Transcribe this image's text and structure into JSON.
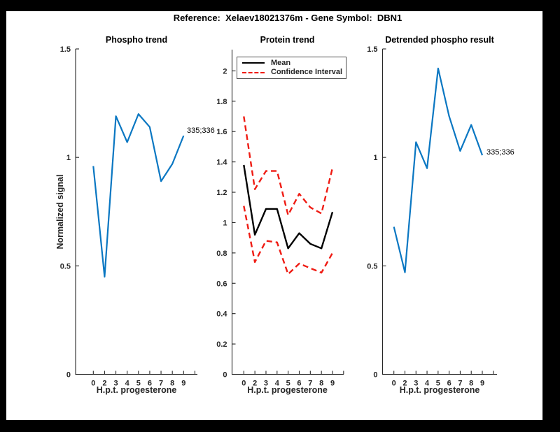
{
  "window": {
    "title": "Reference:  Xelaev18021376m - Gene Symbol:  DBN1"
  },
  "chart_data": [
    {
      "type": "line",
      "title": "Phospho trend",
      "xlabel": "H.p.t. progesterone",
      "ylabel": "Normalized signal",
      "x_tick_labels": [
        "0",
        "2",
        "3",
        "4",
        "5",
        "6",
        "7",
        "8",
        "9"
      ],
      "y_tick_labels": [
        "0",
        "0.5",
        "1",
        "1.5"
      ],
      "ylim": [
        0,
        1.5
      ],
      "grid": false,
      "endpoint_label": "335;336",
      "series": [
        {
          "name": "phospho-335-336",
          "color": "#0a77c2",
          "style": "solid",
          "values": [
            0.96,
            0.45,
            1.19,
            1.07,
            1.2,
            1.14,
            0.89,
            0.97,
            1.1
          ]
        }
      ]
    },
    {
      "type": "line",
      "title": "Protein trend",
      "xlabel": "H.p.t. progesterone",
      "ylabel": "",
      "x_tick_labels": [
        "0",
        "2",
        "3",
        "4",
        "5",
        "6",
        "7",
        "8",
        "9"
      ],
      "y_tick_labels": [
        "0",
        "0.2",
        "0.4",
        "0.6",
        "0.8",
        "1",
        "1.2",
        "1.4",
        "1.6",
        "1.8",
        "2"
      ],
      "ylim": [
        0,
        2.14
      ],
      "grid": false,
      "legend": {
        "position": "north",
        "entries": [
          {
            "label": "Mean",
            "color": "#000000",
            "style": "solid"
          },
          {
            "label": "Confidence Interval",
            "color": "#ef1c14",
            "style": "dashed"
          }
        ]
      },
      "series": [
        {
          "name": "mean",
          "color": "#000000",
          "style": "solid",
          "values": [
            1.38,
            0.92,
            1.09,
            1.09,
            0.83,
            0.93,
            0.86,
            0.83,
            1.07
          ]
        },
        {
          "name": "confidence-upper",
          "color": "#ef1c14",
          "style": "dashed",
          "values": [
            1.7,
            1.22,
            1.34,
            1.34,
            1.05,
            1.19,
            1.1,
            1.06,
            1.36
          ]
        },
        {
          "name": "confidence-lower",
          "color": "#ef1c14",
          "style": "dashed",
          "values": [
            1.11,
            0.74,
            0.88,
            0.87,
            0.66,
            0.73,
            0.7,
            0.67,
            0.8
          ]
        }
      ]
    },
    {
      "type": "line",
      "title": "Detrended phospho result",
      "xlabel": "H.p.t. progesterone",
      "ylabel": "",
      "x_tick_labels": [
        "0",
        "2",
        "3",
        "4",
        "5",
        "6",
        "7",
        "8",
        "9"
      ],
      "y_tick_labels": [
        "0",
        "0.5",
        "1",
        "1.5"
      ],
      "ylim": [
        0,
        1.5
      ],
      "grid": false,
      "endpoint_label": "335;336",
      "series": [
        {
          "name": "detrended-335-336",
          "color": "#0a77c2",
          "style": "solid",
          "values": [
            0.68,
            0.47,
            1.07,
            0.95,
            1.41,
            1.19,
            1.03,
            1.15,
            1.01
          ]
        }
      ]
    }
  ]
}
